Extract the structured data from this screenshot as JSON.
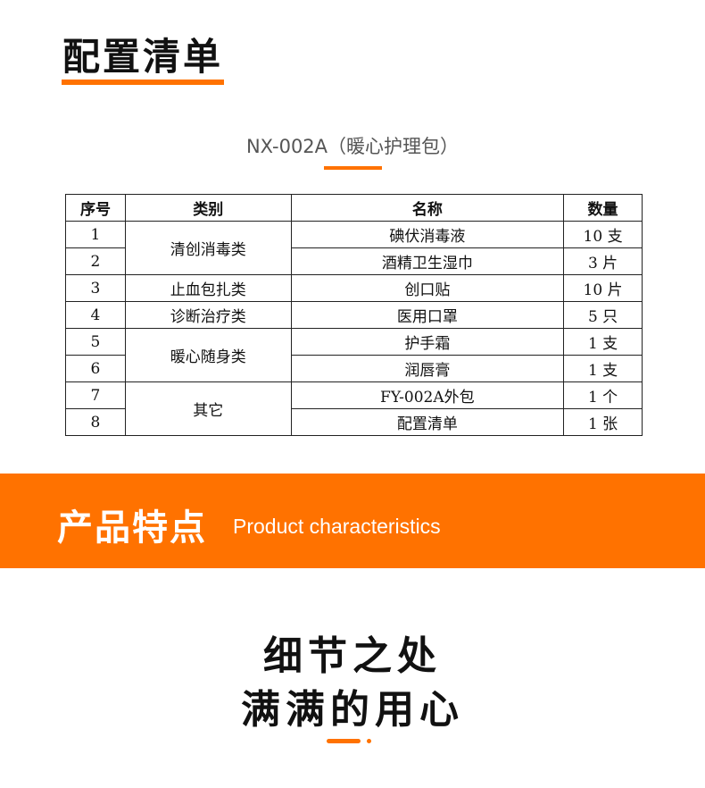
{
  "section1": {
    "title": "配置清单",
    "subtitle": "NX-002A（暖心护理包）"
  },
  "table": {
    "headers": [
      "序号",
      "类别",
      "名称",
      "数量"
    ],
    "categories": [
      "清创消毒类",
      "止血包扎类",
      "诊断治疗类",
      "暖心随身类",
      "其它"
    ],
    "rows": [
      {
        "no": "1",
        "name": "碘伏消毒液",
        "qty": "10 支"
      },
      {
        "no": "2",
        "name": "酒精卫生湿巾",
        "qty": "3 片"
      },
      {
        "no": "3",
        "name": "创口贴",
        "qty": "10 片"
      },
      {
        "no": "4",
        "name": "医用口罩",
        "qty": "5 只"
      },
      {
        "no": "5",
        "name": "护手霜",
        "qty": "1 支"
      },
      {
        "no": "6",
        "name": "润唇膏",
        "qty": "1 支"
      },
      {
        "no": "7",
        "name": "FY-002A外包",
        "qty": "1 个"
      },
      {
        "no": "8",
        "name": "配置清单",
        "qty": "1 张"
      }
    ]
  },
  "section2": {
    "title_cn": "产品特点",
    "title_en": "Product characteristics"
  },
  "slogan": {
    "line1": "细节之处",
    "line2": "满满的用心"
  },
  "colors": {
    "accent": "#ff7200"
  }
}
